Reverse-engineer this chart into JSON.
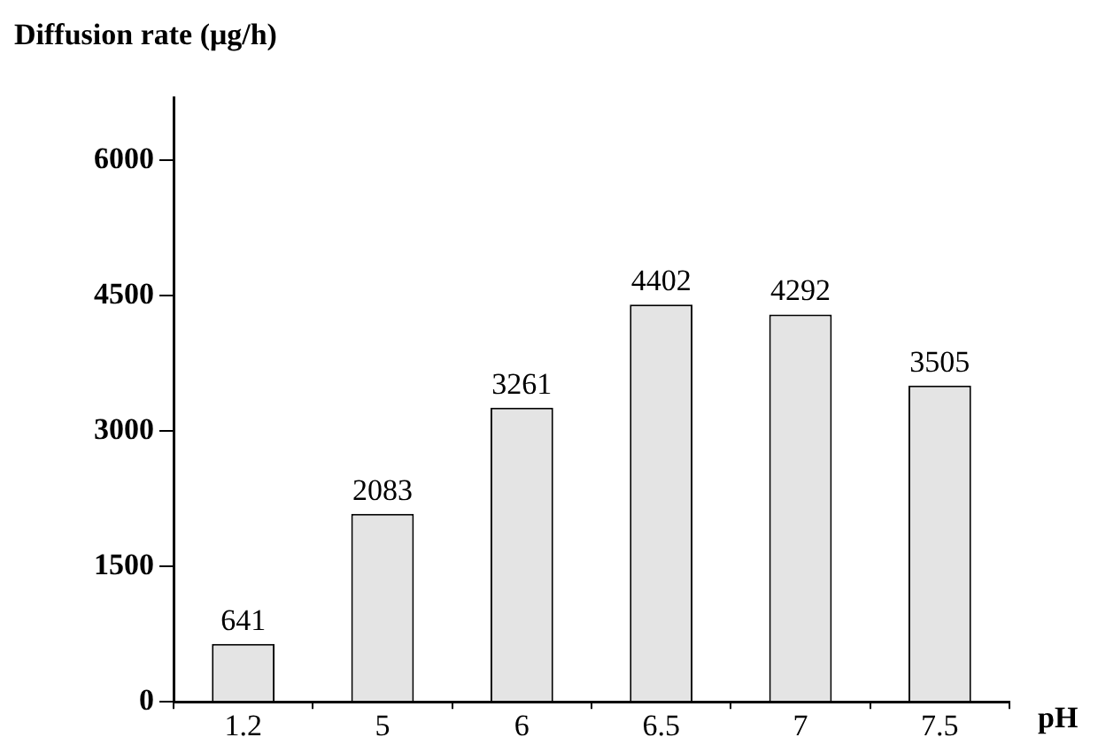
{
  "chart_data": {
    "type": "bar",
    "xlabel": "pH",
    "ylabel": "Diffusion rate (μg/h)",
    "categories": [
      "1.2",
      "5",
      "6",
      "6.5",
      "7",
      "7.5"
    ],
    "values": [
      641,
      2083,
      3261,
      4402,
      4292,
      3505
    ],
    "color": "#e4e4e4",
    "ylim": [
      0,
      6700
    ],
    "yticks": [
      0,
      1500,
      3000,
      4500,
      6000
    ],
    "data_labels": true,
    "grid": false,
    "legend": false
  }
}
